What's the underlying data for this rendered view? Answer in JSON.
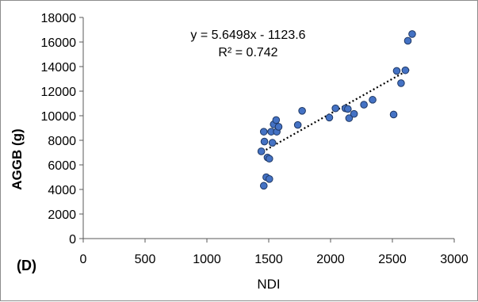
{
  "chart_data": {
    "type": "scatter",
    "panel_label": "(D)",
    "xlabel": "NDI",
    "ylabel": "AGGB (g)",
    "xlim": [
      0,
      3000
    ],
    "ylim": [
      0,
      18000
    ],
    "x_ticks": [
      0,
      500,
      1000,
      1500,
      2000,
      2500,
      3000
    ],
    "y_ticks": [
      0,
      2000,
      4000,
      6000,
      8000,
      10000,
      12000,
      14000,
      16000,
      18000
    ],
    "grid": false,
    "legend": "none",
    "marker_color": "#4472c4",
    "marker_edge_color": "#1f3864",
    "trendline": {
      "type": "linear",
      "slope": 5.6498,
      "intercept": -1123.6,
      "x_range": [
        1450,
        2650
      ],
      "style": "dotted",
      "color": "#000000"
    },
    "annotations": {
      "equation": "y = 5.6498x - 1123.6",
      "r_squared": "R² =  0.742"
    },
    "points": [
      {
        "x": 1440,
        "y": 7100
      },
      {
        "x": 1460,
        "y": 8700
      },
      {
        "x": 1465,
        "y": 7900
      },
      {
        "x": 1460,
        "y": 4300
      },
      {
        "x": 1480,
        "y": 5000
      },
      {
        "x": 1490,
        "y": 6600
      },
      {
        "x": 1505,
        "y": 6500
      },
      {
        "x": 1505,
        "y": 4850
      },
      {
        "x": 1520,
        "y": 8700
      },
      {
        "x": 1530,
        "y": 7800
      },
      {
        "x": 1540,
        "y": 9300
      },
      {
        "x": 1560,
        "y": 9650
      },
      {
        "x": 1565,
        "y": 8700
      },
      {
        "x": 1580,
        "y": 9100
      },
      {
        "x": 1735,
        "y": 9250
      },
      {
        "x": 1770,
        "y": 10400
      },
      {
        "x": 1990,
        "y": 9850
      },
      {
        "x": 2040,
        "y": 10600
      },
      {
        "x": 2120,
        "y": 10600
      },
      {
        "x": 2140,
        "y": 10550
      },
      {
        "x": 2150,
        "y": 9800
      },
      {
        "x": 2190,
        "y": 10150
      },
      {
        "x": 2270,
        "y": 10900
      },
      {
        "x": 2340,
        "y": 11300
      },
      {
        "x": 2510,
        "y": 10100
      },
      {
        "x": 2535,
        "y": 13650
      },
      {
        "x": 2570,
        "y": 12650
      },
      {
        "x": 2605,
        "y": 13700
      },
      {
        "x": 2625,
        "y": 16100
      },
      {
        "x": 2660,
        "y": 16650
      }
    ]
  }
}
